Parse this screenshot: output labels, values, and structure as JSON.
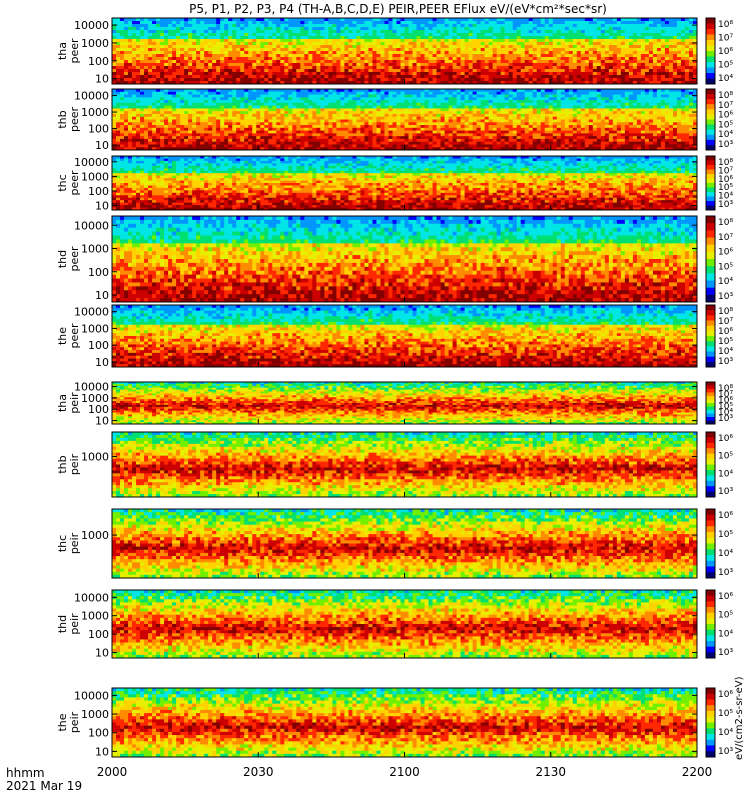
{
  "figure": {
    "title": "P5, P1, P2, P3, P4 (TH-A,B,C,D,E) PEIR,PEER EFlux eV/(eV*cm²*sec*sr)",
    "time_axis_label": "hhmm",
    "date_label": "2021 Mar 19",
    "colorbar_unit_label": "eV/(cm2-s-sr-eV)",
    "colors": {
      "palette": [
        "#00006e",
        "#0000ff",
        "#0096ff",
        "#00e5e5",
        "#00e070",
        "#70f000",
        "#e6f000",
        "#ffd200",
        "#ff8c00",
        "#ff2800",
        "#cc0000",
        "#820000"
      ]
    }
  },
  "chart_data": {
    "type": "heatmap",
    "x": {
      "ticks": [
        "2000",
        "2030",
        "2100",
        "2130",
        "2200"
      ],
      "range": [
        "2000",
        "2200"
      ]
    },
    "panels": [
      {
        "probe": "tha",
        "species": "peer",
        "ylabel": [
          "tha",
          "peer"
        ],
        "yscale": "log",
        "yticks": [
          "10000",
          "1000",
          "100",
          "10"
        ],
        "yrange": [
          5,
          25000
        ],
        "colorbar_ticks": [
          "10⁸",
          "10⁷",
          "10⁶",
          "10⁵",
          "10⁴"
        ]
      },
      {
        "probe": "thb",
        "species": "peer",
        "ylabel": [
          "thb",
          "peer"
        ],
        "yscale": "log",
        "yticks": [
          "10000",
          "1000",
          "100",
          "10"
        ],
        "yrange": [
          5,
          25000
        ],
        "colorbar_ticks": [
          "10⁸",
          "10⁷",
          "10⁶",
          "10⁵",
          "10⁴",
          "10³"
        ]
      },
      {
        "probe": "thc",
        "species": "peer",
        "ylabel": [
          "thc",
          "peer"
        ],
        "yscale": "log",
        "yticks": [
          "10000",
          "1000",
          "100",
          "10"
        ],
        "yrange": [
          5,
          25000
        ],
        "colorbar_ticks": [
          "10⁸",
          "10⁷",
          "10⁶",
          "10⁵",
          "10⁴",
          "10³"
        ]
      },
      {
        "probe": "thd",
        "species": "peer",
        "ylabel": [
          "thd",
          "peer"
        ],
        "yscale": "log",
        "yticks": [
          "10000",
          "1000",
          "100",
          "10"
        ],
        "yrange": [
          5,
          25000
        ],
        "colorbar_ticks": [
          "10⁸",
          "10⁷",
          "10⁶",
          "10⁵",
          "10⁴",
          "10³"
        ]
      },
      {
        "probe": "the",
        "species": "peer",
        "ylabel": [
          "the",
          "peer"
        ],
        "yscale": "log",
        "yticks": [
          "10000",
          "1000",
          "100",
          "10"
        ],
        "yrange": [
          5,
          25000
        ],
        "colorbar_ticks": [
          "10⁸",
          "10⁷",
          "10⁶",
          "10⁵",
          "10⁴",
          "10³"
        ]
      },
      {
        "probe": "tha",
        "species": "peir",
        "ylabel": [
          "tha",
          "peir"
        ],
        "yscale": "log",
        "yticks": [
          "10000",
          "1000",
          "100",
          "10"
        ],
        "yrange": [
          5,
          25000
        ],
        "colorbar_ticks": [
          "10⁸",
          "10⁷",
          "10⁶",
          "10⁵",
          "10⁴",
          "10³"
        ]
      },
      {
        "probe": "thb",
        "species": "peir",
        "ylabel": [
          "thb",
          "peir"
        ],
        "yscale": "log",
        "yticks": [
          "1000"
        ],
        "yrange": [
          5,
          25000
        ],
        "colorbar_ticks": [
          "10⁶",
          "10⁵",
          "10⁴",
          "10³"
        ]
      },
      {
        "probe": "thc",
        "species": "peir",
        "ylabel": [
          "thc",
          "peir"
        ],
        "yscale": "log",
        "yticks": [
          "1000"
        ],
        "yrange": [
          5,
          25000
        ],
        "colorbar_ticks": [
          "10⁶",
          "10⁵",
          "10⁴",
          "10³"
        ]
      },
      {
        "probe": "thd",
        "species": "peir",
        "ylabel": [
          "thd",
          "peir"
        ],
        "yscale": "log",
        "yticks": [
          "10000",
          "1000",
          "100",
          "10"
        ],
        "yrange": [
          5,
          25000
        ],
        "colorbar_ticks": [
          "10⁶",
          "10⁵",
          "10⁴",
          "10³"
        ]
      },
      {
        "probe": "the",
        "species": "peir",
        "ylabel": [
          "the",
          "peir"
        ],
        "yscale": "log",
        "yticks": [
          "10000",
          "1000",
          "100",
          "10"
        ],
        "yrange": [
          5,
          25000
        ],
        "colorbar_ticks": [
          "10⁶",
          "10⁵",
          "10⁴",
          "10³"
        ]
      }
    ]
  }
}
